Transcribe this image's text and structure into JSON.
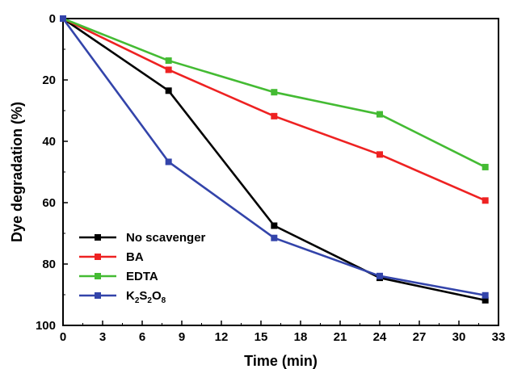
{
  "chart_data": {
    "type": "line",
    "xlabel": "Time (min)",
    "ylabel": "Dye degradation (%)",
    "xlim": [
      0,
      33
    ],
    "ylim": [
      100,
      0
    ],
    "y_inverted": true,
    "xticks": [
      0,
      3,
      6,
      9,
      12,
      15,
      18,
      21,
      24,
      27,
      30,
      33
    ],
    "yticks": [
      0,
      20,
      40,
      60,
      80,
      100
    ],
    "grid": false,
    "legend_position": "bottom-left",
    "series": [
      {
        "name": "No scavenger",
        "legend_parts": [
          {
            "text": "No scavenger"
          }
        ],
        "color": "#000000",
        "marker": "square",
        "x": [
          0,
          8,
          16,
          24,
          32
        ],
        "y": [
          0,
          23.5,
          67.5,
          84.5,
          91.8
        ]
      },
      {
        "name": "BA",
        "legend_parts": [
          {
            "text": "BA"
          }
        ],
        "color": "#ee2222",
        "marker": "square",
        "x": [
          0,
          8,
          16,
          24,
          32
        ],
        "y": [
          0,
          16.7,
          31.8,
          44.3,
          59.3
        ]
      },
      {
        "name": "EDTA",
        "legend_parts": [
          {
            "text": "EDTA"
          }
        ],
        "color": "#44bb33",
        "marker": "square",
        "x": [
          0,
          8,
          16,
          24,
          32
        ],
        "y": [
          0,
          13.7,
          24.0,
          31.2,
          48.4
        ]
      },
      {
        "name": "K2S2O8",
        "legend_parts": [
          {
            "text": "K"
          },
          {
            "text": "2",
            "sub": true
          },
          {
            "text": "S"
          },
          {
            "text": "2",
            "sub": true
          },
          {
            "text": "O"
          },
          {
            "text": "8",
            "sub": true
          }
        ],
        "color": "#3344aa",
        "marker": "square",
        "x": [
          0,
          8,
          16,
          24,
          32
        ],
        "y": [
          0,
          46.7,
          71.5,
          83.9,
          90.2
        ]
      }
    ]
  }
}
